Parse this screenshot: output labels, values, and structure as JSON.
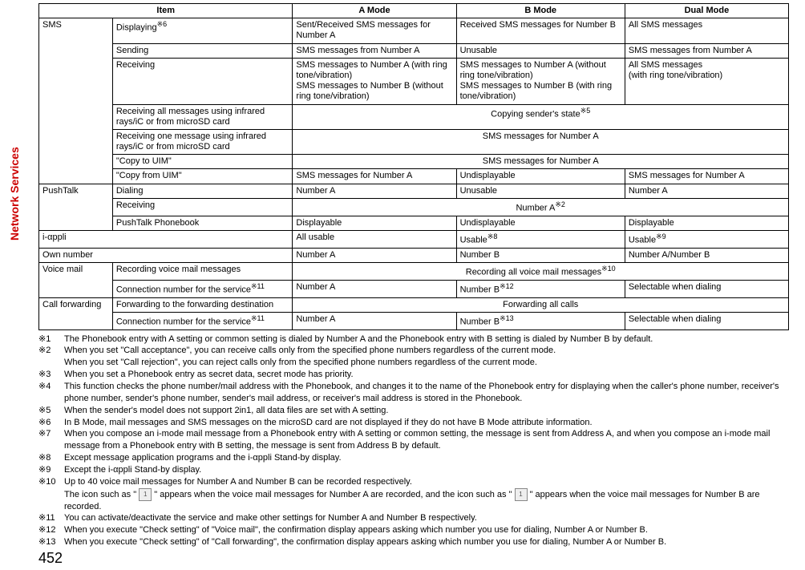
{
  "sideLabel": "Network Services",
  "pageNumber": "452",
  "headers": {
    "item": "Item",
    "a": "A Mode",
    "b": "B Mode",
    "dual": "Dual Mode"
  },
  "table": {
    "sms": {
      "label": "SMS",
      "displaying": {
        "label": "Displaying",
        "ref": "※6",
        "a": "Sent/Received SMS messages for Number A",
        "b": "Received SMS messages for Number B",
        "dual": "All SMS messages"
      },
      "sending": {
        "label": "Sending",
        "a": "SMS messages from Number A",
        "b": "Unusable",
        "dual": "SMS messages from Number A"
      },
      "receiving": {
        "label": "Receiving",
        "a": "SMS messages to Number A (with ring tone/vibration)\nSMS messages to Number B (without ring tone/vibration)",
        "b": "SMS messages to Number A (without ring tone/vibration)\nSMS messages to Number B (with ring tone/vibration)",
        "dual": "All SMS messages\n(with ring tone/vibration)"
      },
      "recvAllIR": {
        "label": "Receiving all messages using infrared rays/iC or from microSD card",
        "merged": "Copying sender's state",
        "mergedRef": "※5"
      },
      "recvOneIR": {
        "label": "Receiving one message using infrared rays/iC or from microSD card",
        "merged": "SMS messages for Number A"
      },
      "copyToUIM": {
        "label": "\"Copy to UIM\"",
        "merged": "SMS messages for Number A"
      },
      "copyFromUIM": {
        "label": "\"Copy from UIM\"",
        "a": "SMS messages for Number A",
        "b": "Undisplayable",
        "dual": "SMS messages for Number A"
      }
    },
    "pushtalk": {
      "label": "PushTalk",
      "dialing": {
        "label": "Dialing",
        "a": "Number A",
        "b": "Unusable",
        "dual": "Number A"
      },
      "receiving": {
        "label": "Receiving",
        "merged": "Number A",
        "mergedRef": "※2"
      },
      "phonebook": {
        "label": "PushTalk Phonebook",
        "a": "Displayable",
        "b": "Undisplayable",
        "dual": "Displayable"
      }
    },
    "iappli": {
      "label": "i-αppli",
      "a": "All usable",
      "b": "Usable",
      "bRef": "※8",
      "dual": "Usable",
      "dualRef": "※9"
    },
    "own": {
      "label": "Own number",
      "a": "Number A",
      "b": "Number B",
      "dual": "Number A/Number B"
    },
    "voicemail": {
      "label": "Voice mail",
      "recording": {
        "label": "Recording voice mail messages",
        "merged": "Recording all voice mail messages",
        "mergedRef": "※10"
      },
      "conn": {
        "label": "Connection number for the service",
        "labelRef": "※11",
        "a": "Number A",
        "b": "Number B",
        "bRef": "※12",
        "dual": "Selectable when dialing"
      }
    },
    "callfwd": {
      "label": "Call forwarding",
      "fwd": {
        "label": "Forwarding to the forwarding destination",
        "merged": "Forwarding all calls"
      },
      "conn": {
        "label": "Connection number for the service",
        "labelRef": "※11",
        "a": "Number A",
        "b": "Number B",
        "bRef": "※13",
        "dual": "Selectable when dialing"
      }
    }
  },
  "notes": {
    "n1": {
      "tag": "※1",
      "text": "The Phonebook entry with A setting or common setting is dialed by Number A and the Phonebook entry with B setting is dialed by Number B by default."
    },
    "n2a": {
      "tag": "※2",
      "text": "When you set \"Call acceptance\", you can receive calls only from the specified phone numbers regardless of the current mode."
    },
    "n2b": {
      "text": "When you set \"Call rejection\", you can reject calls only from the specified phone numbers regardless of the current mode."
    },
    "n3": {
      "tag": "※3",
      "text": "When you set a Phonebook entry as secret data, secret mode has priority."
    },
    "n4": {
      "tag": "※4",
      "text": "This function checks the phone number/mail address with the Phonebook, and changes it to the name of the Phonebook entry for displaying when the caller's phone number, receiver's phone number, sender's phone number, sender's mail address, or receiver's mail address is stored in the Phonebook."
    },
    "n5": {
      "tag": "※5",
      "text": "When the sender's model does not support 2in1, all data files are set with A setting."
    },
    "n6": {
      "tag": "※6",
      "text": "In B Mode, mail messages and SMS messages on the microSD card are not displayed if they do not have B Mode attribute information."
    },
    "n7": {
      "tag": "※7",
      "text": "When you compose an i-mode mail message from a Phonebook entry with A setting or common setting, the message is sent from Address A, and when you compose an i-mode mail message from a Phonebook entry with B setting, the message is sent from Address B by default."
    },
    "n8": {
      "tag": "※8",
      "text": "Except message application programs and the i-αppli Stand-by display."
    },
    "n9": {
      "tag": "※9",
      "text": "Except the i-αppli Stand-by display."
    },
    "n10a": {
      "tag": "※10",
      "text": "Up to 40 voice mail messages for Number A and Number B can be recorded respectively."
    },
    "n10b": {
      "pre": "The icon such as \" ",
      "mid": " \" appears when the voice mail messages for Number A are recorded, and the icon such as \" ",
      "post": " \" appears when the voice mail messages for Number B are recorded."
    },
    "n11": {
      "tag": "※11",
      "text": "You can activate/deactivate the service and make other settings for Number A and Number B respectively."
    },
    "n12": {
      "tag": "※12",
      "text": "When you execute \"Check setting\" of \"Voice mail\", the confirmation display appears asking which number you use for dialing, Number A or Number B."
    },
    "n13": {
      "tag": "※13",
      "text": "When you execute \"Check setting\" of \"Call forwarding\", the confirmation display appears asking which number you use for dialing, Number A or Number B."
    }
  }
}
